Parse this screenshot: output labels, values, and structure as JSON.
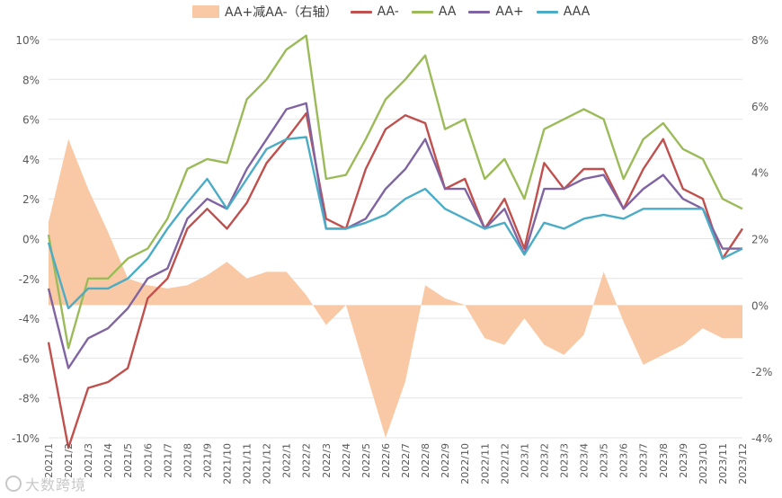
{
  "chart_data": {
    "type": "line",
    "title": "",
    "x": [
      "2021/1",
      "2021/2",
      "2021/3",
      "2021/4",
      "2021/5",
      "2021/6",
      "2021/7",
      "2021/8",
      "2021/9",
      "2021/10",
      "2021/11",
      "2021/12",
      "2022/1",
      "2022/2",
      "2022/3",
      "2022/4",
      "2022/5",
      "2022/6",
      "2022/7",
      "2022/8",
      "2022/9",
      "2022/10",
      "2022/11",
      "2022/12",
      "2023/1",
      "2023/2",
      "2023/3",
      "2023/4",
      "2023/5",
      "2023/6",
      "2023/7",
      "2023/8",
      "2023/9",
      "2023/10",
      "2023/11",
      "2023/12"
    ],
    "left_axis": {
      "ylim": [
        -10,
        10
      ],
      "ticks": [
        "10%",
        "8%",
        "6%",
        "4%",
        "2%",
        "0%",
        "-2%",
        "-4%",
        "-6%",
        "-8%",
        "-10%"
      ]
    },
    "right_axis": {
      "ylim": [
        -4,
        8
      ],
      "ticks": [
        "8%",
        "6%",
        "4%",
        "2%",
        "0%",
        "-2%",
        "-4%"
      ]
    },
    "series": [
      {
        "name": "AA+减AA-（右轴）",
        "axis": "right",
        "style": "area",
        "color": "#f9c9a5",
        "values": [
          2.5,
          5.0,
          3.5,
          2.2,
          0.8,
          0.6,
          0.5,
          0.6,
          0.9,
          1.3,
          0.8,
          1.0,
          1.0,
          0.3,
          -0.6,
          0.0,
          -2.0,
          -4.0,
          -2.3,
          0.6,
          0.2,
          0.0,
          -1.0,
          -1.2,
          -0.4,
          -1.2,
          -1.5,
          -0.9,
          1.0,
          -0.5,
          -1.8,
          -1.5,
          -1.2,
          -0.7,
          -1.0,
          -1.0
        ]
      },
      {
        "name": "AA-",
        "axis": "left",
        "style": "line",
        "color": "#c0504d",
        "values": [
          -5.2,
          -10.5,
          -7.5,
          -7.2,
          -6.5,
          -3.0,
          -2.0,
          0.5,
          1.5,
          0.5,
          1.8,
          3.8,
          5.0,
          6.3,
          1.0,
          0.5,
          3.5,
          5.5,
          6.2,
          5.8,
          2.5,
          3.0,
          0.5,
          2.0,
          -0.5,
          3.8,
          2.5,
          3.5,
          3.5,
          1.5,
          3.5,
          5.0,
          2.5,
          2.0,
          -1.0,
          0.5
        ]
      },
      {
        "name": "AA",
        "axis": "left",
        "style": "line",
        "color": "#9bbb59",
        "values": [
          0.2,
          -5.5,
          -2.0,
          -2.0,
          -1.0,
          -0.5,
          1.0,
          3.5,
          4.0,
          3.8,
          7.0,
          8.0,
          9.5,
          10.2,
          3.0,
          3.2,
          5.0,
          7.0,
          8.0,
          9.2,
          5.5,
          6.0,
          3.0,
          4.0,
          2.0,
          5.5,
          6.0,
          6.5,
          6.0,
          3.0,
          5.0,
          5.8,
          4.5,
          4.0,
          2.0,
          1.5
        ]
      },
      {
        "name": "AA+",
        "axis": "left",
        "style": "line",
        "color": "#8064a2",
        "values": [
          -2.5,
          -6.5,
          -5.0,
          -4.5,
          -3.5,
          -2.0,
          -1.5,
          1.0,
          2.0,
          1.5,
          3.5,
          5.0,
          6.5,
          6.8,
          0.5,
          0.5,
          1.0,
          2.5,
          3.5,
          5.0,
          2.5,
          2.5,
          0.5,
          1.5,
          -0.8,
          2.5,
          2.5,
          3.0,
          3.2,
          1.5,
          2.5,
          3.2,
          2.0,
          1.5,
          -0.5,
          -0.5
        ]
      },
      {
        "name": "AAA",
        "axis": "left",
        "style": "line",
        "color": "#4bacc6",
        "values": [
          -0.2,
          -3.5,
          -2.5,
          -2.5,
          -2.0,
          -1.0,
          0.5,
          1.8,
          3.0,
          1.5,
          3.0,
          4.5,
          5.0,
          5.1,
          0.5,
          0.5,
          0.8,
          1.2,
          2.0,
          2.5,
          1.5,
          1.0,
          0.5,
          0.8,
          -0.8,
          0.8,
          0.5,
          1.0,
          1.2,
          1.0,
          1.5,
          1.5,
          1.5,
          1.5,
          -1.0,
          -0.5
        ]
      }
    ]
  },
  "legend": {
    "area_label": "AA+减AA-（右轴）",
    "aa_minus": "AA-",
    "aa": "AA",
    "aa_plus": "AA+",
    "aaa": "AAA"
  },
  "watermark": {
    "text": "大数跨境"
  }
}
